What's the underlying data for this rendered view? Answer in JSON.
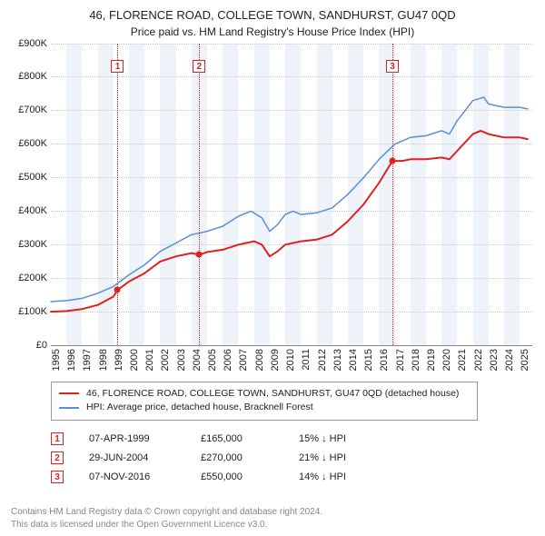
{
  "title": "46, FLORENCE ROAD, COLLEGE TOWN, SANDHURST, GU47 0QD",
  "subtitle": "Price paid vs. HM Land Registry's House Price Index (HPI)",
  "chart": {
    "type": "line",
    "background_color": "#ffffff",
    "grid_color": "#c8c8c8",
    "vband_color": "#eef3fa",
    "sale_vline_color": "#e02020",
    "font_size_axis": 11,
    "x": {
      "min": 1995,
      "max": 2025.8,
      "ticks": [
        1995,
        1996,
        1997,
        1998,
        1999,
        2000,
        2001,
        2002,
        2003,
        2004,
        2005,
        2006,
        2007,
        2008,
        2009,
        2010,
        2011,
        2012,
        2013,
        2014,
        2015,
        2016,
        2017,
        2018,
        2019,
        2020,
        2021,
        2022,
        2023,
        2024,
        2025
      ],
      "band_years": [
        1996,
        1998,
        2000,
        2002,
        2004,
        2006,
        2008,
        2010,
        2012,
        2014,
        2016,
        2018,
        2020,
        2022,
        2024
      ]
    },
    "y": {
      "min": 0,
      "max": 900000,
      "prefix": "£",
      "suffix": "K",
      "divisor": 1000,
      "ticks": [
        0,
        100000,
        200000,
        300000,
        400000,
        500000,
        600000,
        700000,
        800000,
        900000
      ]
    },
    "series": [
      {
        "id": "property",
        "label": "46, FLORENCE ROAD, COLLEGE TOWN, SANDHURST, GU47 0QD (detached house)",
        "color": "#e02020",
        "line_width": 2,
        "points": [
          [
            1995.0,
            100000
          ],
          [
            1996.0,
            102000
          ],
          [
            1997.0,
            108000
          ],
          [
            1998.0,
            120000
          ],
          [
            1999.0,
            145000
          ],
          [
            1999.27,
            165000
          ],
          [
            2000.0,
            190000
          ],
          [
            2001.0,
            215000
          ],
          [
            2002.0,
            250000
          ],
          [
            2003.0,
            265000
          ],
          [
            2004.0,
            275000
          ],
          [
            2004.49,
            270000
          ],
          [
            2005.0,
            278000
          ],
          [
            2006.0,
            285000
          ],
          [
            2007.0,
            300000
          ],
          [
            2008.0,
            310000
          ],
          [
            2008.5,
            300000
          ],
          [
            2009.0,
            265000
          ],
          [
            2009.5,
            280000
          ],
          [
            2010.0,
            300000
          ],
          [
            2011.0,
            310000
          ],
          [
            2012.0,
            315000
          ],
          [
            2013.0,
            330000
          ],
          [
            2014.0,
            370000
          ],
          [
            2015.0,
            420000
          ],
          [
            2016.0,
            485000
          ],
          [
            2016.85,
            550000
          ],
          [
            2017.5,
            550000
          ],
          [
            2018.0,
            555000
          ],
          [
            2019.0,
            555000
          ],
          [
            2020.0,
            560000
          ],
          [
            2020.5,
            555000
          ],
          [
            2021.0,
            580000
          ],
          [
            2022.0,
            630000
          ],
          [
            2022.5,
            640000
          ],
          [
            2023.0,
            630000
          ],
          [
            2024.0,
            620000
          ],
          [
            2025.0,
            620000
          ],
          [
            2025.5,
            615000
          ]
        ]
      },
      {
        "id": "hpi",
        "label": "HPI: Average price, detached house, Bracknell Forest",
        "color": "#5b8fd6",
        "line_width": 1.5,
        "points": [
          [
            1995.0,
            130000
          ],
          [
            1996.0,
            133000
          ],
          [
            1997.0,
            140000
          ],
          [
            1998.0,
            155000
          ],
          [
            1999.0,
            175000
          ],
          [
            2000.0,
            210000
          ],
          [
            2001.0,
            240000
          ],
          [
            2002.0,
            280000
          ],
          [
            2003.0,
            305000
          ],
          [
            2004.0,
            330000
          ],
          [
            2005.0,
            340000
          ],
          [
            2006.0,
            355000
          ],
          [
            2007.0,
            385000
          ],
          [
            2007.8,
            400000
          ],
          [
            2008.5,
            380000
          ],
          [
            2009.0,
            340000
          ],
          [
            2009.5,
            360000
          ],
          [
            2010.0,
            390000
          ],
          [
            2010.5,
            400000
          ],
          [
            2011.0,
            390000
          ],
          [
            2012.0,
            395000
          ],
          [
            2013.0,
            410000
          ],
          [
            2014.0,
            450000
          ],
          [
            2015.0,
            500000
          ],
          [
            2016.0,
            555000
          ],
          [
            2017.0,
            600000
          ],
          [
            2018.0,
            620000
          ],
          [
            2019.0,
            625000
          ],
          [
            2020.0,
            640000
          ],
          [
            2020.5,
            630000
          ],
          [
            2021.0,
            670000
          ],
          [
            2022.0,
            730000
          ],
          [
            2022.7,
            740000
          ],
          [
            2023.0,
            720000
          ],
          [
            2024.0,
            710000
          ],
          [
            2025.0,
            710000
          ],
          [
            2025.5,
            705000
          ]
        ]
      }
    ],
    "sale_markers": [
      {
        "n": "1",
        "x": 1999.27,
        "y": 165000
      },
      {
        "n": "2",
        "x": 2004.49,
        "y": 270000
      },
      {
        "n": "3",
        "x": 2016.85,
        "y": 550000
      }
    ]
  },
  "sales_table": {
    "rows": [
      {
        "n": "1",
        "date": "07-APR-1999",
        "price": "£165,000",
        "pct": "15% ↓ HPI"
      },
      {
        "n": "2",
        "date": "29-JUN-2004",
        "price": "£270,000",
        "pct": "21% ↓ HPI"
      },
      {
        "n": "3",
        "date": "07-NOV-2016",
        "price": "£550,000",
        "pct": "14% ↓ HPI"
      }
    ]
  },
  "attribution": {
    "line1": "Contains HM Land Registry data © Crown copyright and database right 2024.",
    "line2": "This data is licensed under the Open Government Licence v3.0."
  }
}
